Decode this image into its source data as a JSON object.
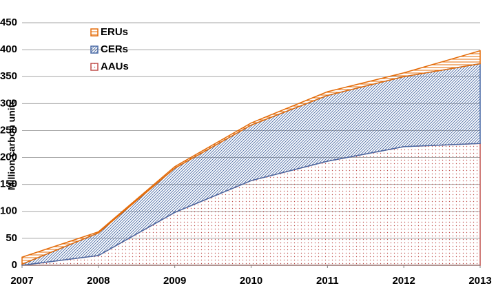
{
  "chart_data": {
    "type": "stacked-area",
    "ylabel": "Million carbon units",
    "x": [
      2007,
      2008,
      2009,
      2010,
      2011,
      2012,
      2013
    ],
    "xlim": [
      2007,
      2013
    ],
    "xticks": [
      2007,
      2008,
      2009,
      2010,
      2011,
      2012,
      2013
    ],
    "ylim": [
      0,
      450
    ],
    "yticks": [
      0,
      50,
      100,
      150,
      200,
      250,
      300,
      350,
      400,
      450
    ],
    "grid": true,
    "legend": "upper left",
    "series": [
      {
        "name": "AAUs",
        "color": "#c0504d",
        "pattern": "dots",
        "values": [
          0,
          18,
          98,
          157,
          193,
          220,
          226
        ]
      },
      {
        "name": "CERs",
        "color": "#4a6aa5",
        "pattern": "diagonal",
        "values": [
          2,
          42,
          82,
          103,
          122,
          130,
          148
        ]
      },
      {
        "name": "ERUs",
        "color": "#e46c0a",
        "pattern": "horizontal",
        "values": [
          13,
          2,
          3,
          4,
          7,
          7,
          24
        ]
      }
    ]
  }
}
